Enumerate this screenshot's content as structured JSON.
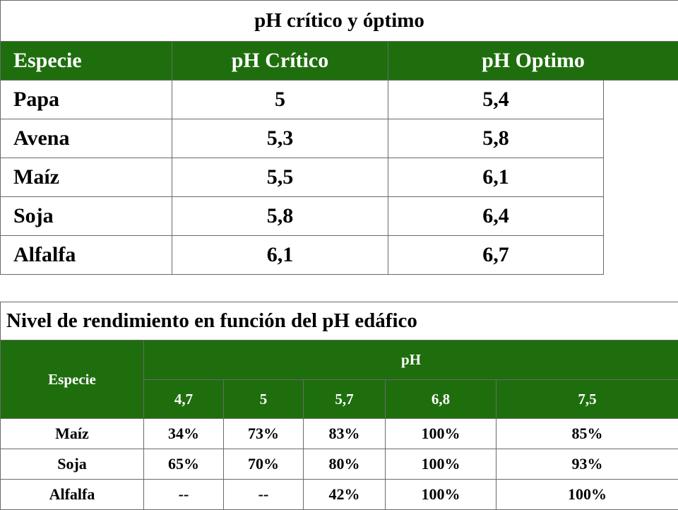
{
  "table_critical": {
    "title": "pH crítico y óptimo",
    "headers": [
      "Especie",
      "pH Crítico",
      "pH Optimo"
    ],
    "rows": [
      {
        "species": "Papa",
        "critical": "5",
        "optimal": "5,4"
      },
      {
        "species": "Avena",
        "critical": "5,3",
        "optimal": "5,8"
      },
      {
        "species": "Maíz",
        "critical": "5,5",
        "optimal": "6,1"
      },
      {
        "species": "Soja",
        "critical": "5,8",
        "optimal": "6,4"
      },
      {
        "species": "Alfalfa",
        "critical": "6,1",
        "optimal": "6,7"
      }
    ]
  },
  "table_yield": {
    "title": "Nivel de rendimiento en función del pH edáfico",
    "species_header": "Especie",
    "ph_header": "pH",
    "ph_values": [
      "4,7",
      "5",
      "5,7",
      "6,8",
      "7,5"
    ],
    "rows": [
      {
        "species": "Maíz",
        "values": [
          "34%",
          "73%",
          "83%",
          "100%",
          "85%"
        ]
      },
      {
        "species": "Soja",
        "values": [
          "65%",
          "70%",
          "80%",
          "100%",
          "93%"
        ]
      },
      {
        "species": "Alfalfa",
        "values": [
          "--",
          "--",
          "42%",
          "100%",
          "100%"
        ]
      }
    ]
  },
  "colors": {
    "header_green": "#1f6e0e",
    "header_text": "#ffffff",
    "border": "#6a6a6a"
  }
}
